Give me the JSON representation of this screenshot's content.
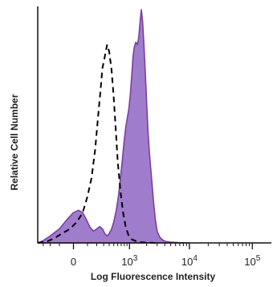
{
  "chart_data": {
    "type": "area",
    "xlabel": "Log Fluorescence Intensity",
    "ylabel": "Relative Cell Number",
    "x_scale": "biexponential",
    "x_ticks": [
      {
        "value": 0,
        "base": "0",
        "sup": ""
      },
      {
        "value": 1000,
        "base": "10",
        "sup": "3"
      },
      {
        "value": 10000,
        "base": "10",
        "sup": "4"
      },
      {
        "value": 100000,
        "base": "10",
        "sup": "5"
      }
    ],
    "xlim": [
      -400,
      200000
    ],
    "ylim": [
      0,
      100
    ],
    "grid": false,
    "legend": "none",
    "series": [
      {
        "style": "dashed",
        "color": "#000000",
        "x": [
          -400,
          -250,
          -150,
          -80,
          -20,
          20,
          60,
          100,
          140,
          180,
          220,
          250,
          280,
          320,
          360,
          400,
          450,
          500,
          550,
          600,
          680,
          760,
          850,
          950,
          1100,
          1300,
          1600,
          2000,
          3000
        ],
        "y": [
          0,
          0.5,
          2,
          4,
          6,
          9,
          13,
          20,
          28,
          40,
          55,
          65,
          75,
          80,
          85,
          82,
          74,
          62,
          48,
          35,
          22,
          13,
          7,
          3.5,
          1.5,
          0.8,
          0.3,
          0.1,
          0
        ]
      },
      {
        "style": "filled",
        "color": "#7b3f9e",
        "fill": "#a07ccc",
        "x": [
          -400,
          -300,
          -200,
          -100,
          -40,
          0,
          30,
          60,
          90,
          120,
          160,
          200,
          240,
          280,
          320,
          360,
          400,
          450,
          500,
          560,
          620,
          680,
          740,
          800,
          860,
          920,
          980,
          1040,
          1100,
          1160,
          1220,
          1300,
          1380,
          1460,
          1540,
          1620,
          1700,
          1800,
          1900,
          2000,
          2100,
          2200,
          2300,
          2450,
          2600,
          2800,
          3000,
          3300,
          3700,
          4200,
          5000,
          7000,
          10000
        ],
        "y": [
          0,
          1,
          3,
          6,
          10,
          13,
          14,
          13,
          10,
          7,
          5,
          6,
          7,
          6,
          4,
          3,
          4,
          6,
          9,
          14,
          20,
          28,
          36,
          44,
          50,
          54,
          58,
          64,
          72,
          80,
          84,
          86,
          85,
          88,
          95,
          100,
          95,
          84,
          72,
          60,
          48,
          40,
          34,
          26,
          18,
          10,
          5,
          2.5,
          1.2,
          0.6,
          0.3,
          0.1,
          0
        ]
      }
    ]
  }
}
